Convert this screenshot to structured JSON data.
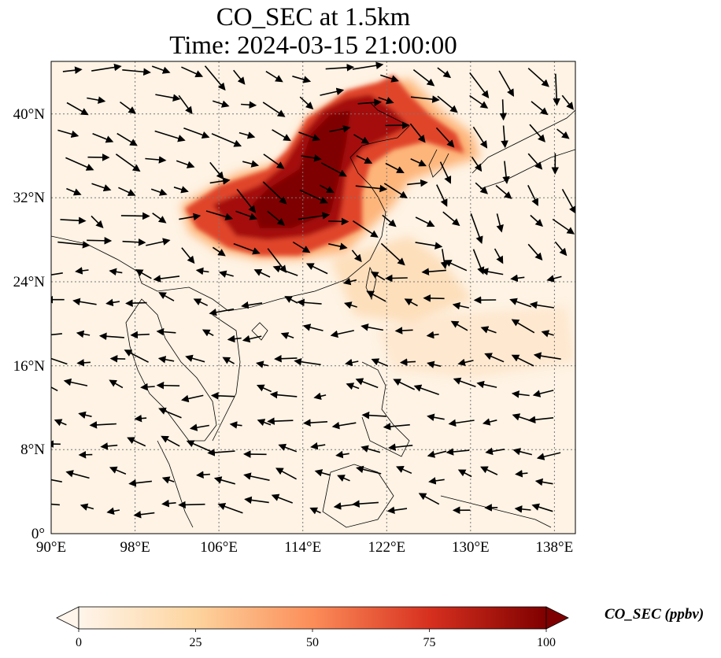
{
  "title": {
    "line1": "CO_SEC at 1.5km",
    "line2": "Time: 2024-03-15 21:00:00"
  },
  "map": {
    "lon_range": [
      90,
      140
    ],
    "lat_range": [
      0,
      45
    ],
    "lon_ticks": [
      "90°E",
      "98°E",
      "106°E",
      "114°E",
      "122°E",
      "130°E",
      "138°E"
    ],
    "lat_ticks": [
      "0°",
      "8°N",
      "16°N",
      "24°N",
      "32°N",
      "40°N"
    ],
    "gridlines": "dotted",
    "field": "CO_SEC",
    "wind_vectors": true
  },
  "colorbar": {
    "label": "CO_SEC (ppbv)",
    "ticks": [
      "0",
      "25",
      "50",
      "75",
      "100"
    ],
    "range": [
      0,
      100
    ],
    "extend": "both",
    "colors": [
      "#fff5eb",
      "#fdd49e",
      "#fc8d59",
      "#d7301f",
      "#7f0000"
    ]
  }
}
